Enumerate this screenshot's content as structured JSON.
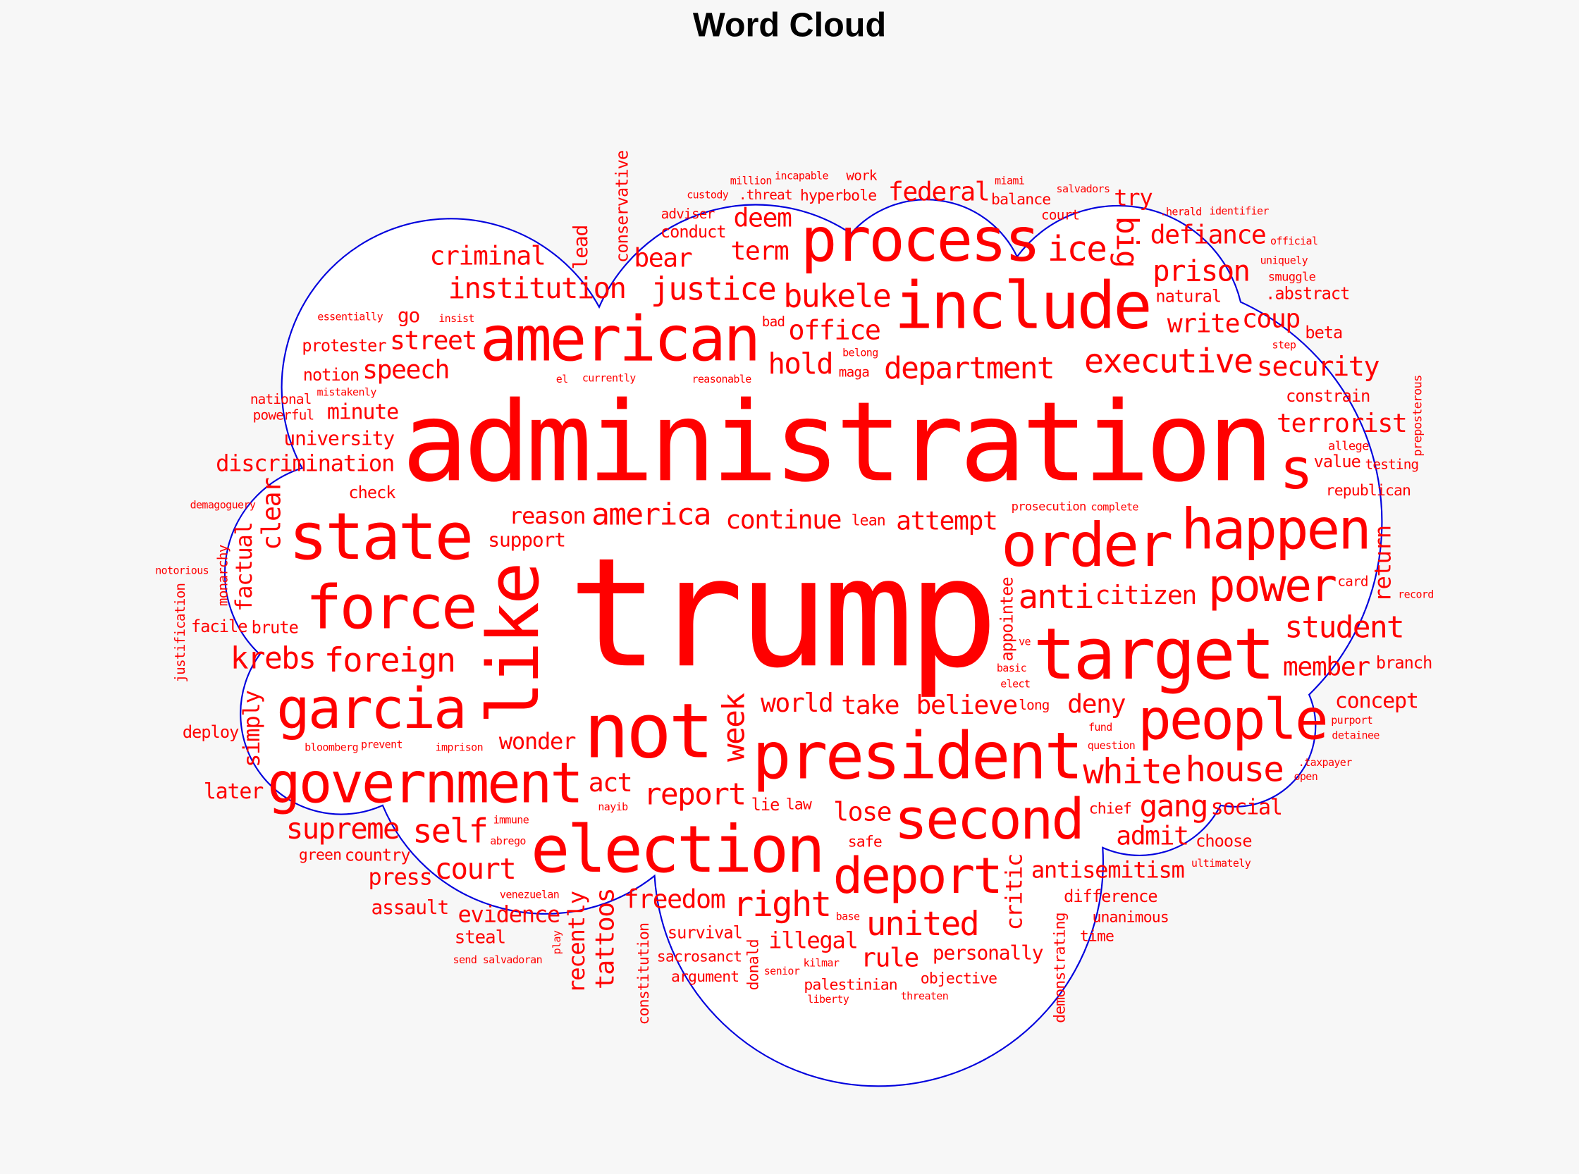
{
  "chart_data": {
    "type": "wordcloud",
    "title": "Word Cloud",
    "word_color": "#ff0000",
    "outline_color": "#0000dd",
    "shape": "cloud",
    "words": [
      {
        "text": "trump",
        "weight": 1.0
      },
      {
        "text": "administration",
        "weight": 0.73
      },
      {
        "text": "not",
        "weight": 0.5
      },
      {
        "text": "like",
        "weight": 0.47
      },
      {
        "text": "target",
        "weight": 0.47
      },
      {
        "text": "include",
        "weight": 0.43
      },
      {
        "text": "state",
        "weight": 0.43
      },
      {
        "text": "election",
        "weight": 0.43
      },
      {
        "text": "president",
        "weight": 0.43
      },
      {
        "text": "american",
        "weight": 0.41
      },
      {
        "text": "process",
        "weight": 0.4
      },
      {
        "text": "order",
        "weight": 0.4
      },
      {
        "text": "force",
        "weight": 0.4
      },
      {
        "text": "happen",
        "weight": 0.37
      },
      {
        "text": "s",
        "weight": 0.37
      },
      {
        "text": "people",
        "weight": 0.37
      },
      {
        "text": "garcia",
        "weight": 0.37
      },
      {
        "text": "government",
        "weight": 0.37
      },
      {
        "text": "second",
        "weight": 0.37
      },
      {
        "text": "deport",
        "weight": 0.33
      },
      {
        "text": "power",
        "weight": 0.3
      },
      {
        "text": "white",
        "weight": 0.23
      },
      {
        "text": "house",
        "weight": 0.23
      },
      {
        "text": "ice",
        "weight": 0.23
      },
      {
        "text": "right",
        "weight": 0.23
      },
      {
        "text": "executive",
        "weight": 0.22
      },
      {
        "text": "anti",
        "weight": 0.22
      },
      {
        "text": "foreign",
        "weight": 0.22
      },
      {
        "text": "self",
        "weight": 0.22
      },
      {
        "text": "united",
        "weight": 0.22
      },
      {
        "text": "justice",
        "weight": 0.21
      },
      {
        "text": "bukele",
        "weight": 0.21
      },
      {
        "text": "big",
        "weight": 0.2
      },
      {
        "text": "department",
        "weight": 0.2
      },
      {
        "text": "america",
        "weight": 0.2
      },
      {
        "text": "student",
        "weight": 0.2
      },
      {
        "text": "krebs",
        "weight": 0.2
      },
      {
        "text": "week",
        "weight": 0.2
      },
      {
        "text": "gang",
        "weight": 0.2
      },
      {
        "text": "report",
        "weight": 0.2
      },
      {
        "text": "institution",
        "weight": 0.19
      },
      {
        "text": "hold",
        "weight": 0.19
      },
      {
        "text": "supreme",
        "weight": 0.19
      },
      {
        "text": "court",
        "weight": 0.19
      },
      {
        "text": "prison",
        "weight": 0.19
      },
      {
        "text": "office",
        "weight": 0.18
      },
      {
        "text": "security",
        "weight": 0.18
      },
      {
        "text": "criminal",
        "weight": 0.17
      },
      {
        "text": "term",
        "weight": 0.17
      },
      {
        "text": "federal",
        "weight": 0.17
      },
      {
        "text": "deem",
        "weight": 0.17
      },
      {
        "text": "write",
        "weight": 0.17
      },
      {
        "text": "defiance",
        "weight": 0.17
      },
      {
        "text": "speech",
        "weight": 0.17
      },
      {
        "text": "coup",
        "weight": 0.17
      },
      {
        "text": "bear",
        "weight": 0.17
      },
      {
        "text": "street",
        "weight": 0.17
      },
      {
        "text": "continue",
        "weight": 0.17
      },
      {
        "text": "attempt",
        "weight": 0.17
      },
      {
        "text": "citizen",
        "weight": 0.17
      },
      {
        "text": "terrorist",
        "weight": 0.17
      },
      {
        "text": "take",
        "weight": 0.17
      },
      {
        "text": "believe",
        "weight": 0.17
      },
      {
        "text": "deny",
        "weight": 0.17
      },
      {
        "text": "member",
        "weight": 0.17
      },
      {
        "text": "world",
        "weight": 0.17
      },
      {
        "text": "lose",
        "weight": 0.17
      },
      {
        "text": "act",
        "weight": 0.17
      },
      {
        "text": "freedom",
        "weight": 0.17
      },
      {
        "text": "admit",
        "weight": 0.17
      },
      {
        "text": "rule",
        "weight": 0.17
      },
      {
        "text": "clear",
        "weight": 0.17
      },
      {
        "text": "tattoos",
        "weight": 0.17
      },
      {
        "text": "wonder",
        "weight": 0.15
      },
      {
        "text": "try",
        "weight": 0.15
      },
      {
        "text": "discrimination",
        "weight": 0.15
      },
      {
        "text": "reason",
        "weight": 0.15
      },
      {
        "text": "factual",
        "weight": 0.15
      },
      {
        "text": "recently",
        "weight": 0.15
      },
      {
        "text": "critic",
        "weight": 0.15
      },
      {
        "text": "simply",
        "weight": 0.15
      },
      {
        "text": "return",
        "weight": 0.15
      },
      {
        "text": "evidence",
        "weight": 0.15
      },
      {
        "text": "illegal",
        "weight": 0.15
      },
      {
        "text": "antisemitism",
        "weight": 0.15
      },
      {
        "text": "press",
        "weight": 0.15
      },
      {
        "text": "minute",
        "weight": 0.14
      },
      {
        "text": "concept",
        "weight": 0.14
      },
      {
        "text": "social",
        "weight": 0.14
      },
      {
        "text": "later",
        "weight": 0.14
      },
      {
        "text": "go",
        "weight": 0.13
      },
      {
        "text": "assault",
        "weight": 0.13
      },
      {
        "text": "lead",
        "weight": 0.13
      },
      {
        "text": "personally",
        "weight": 0.13
      },
      {
        "text": "university",
        "weight": 0.13
      },
      {
        "text": "support",
        "weight": 0.13
      },
      {
        "text": "steal",
        "weight": 0.12
      },
      {
        "text": "protester",
        "weight": 0.11
      },
      {
        "text": "constrain",
        "weight": 0.11
      },
      {
        "text": "conduct",
        "weight": 0.11
      },
      {
        "text": ".abstract",
        "weight": 0.11
      },
      {
        "text": "beta",
        "weight": 0.11
      },
      {
        "text": "natural",
        "weight": 0.11
      },
      {
        "text": "check",
        "weight": 0.11
      },
      {
        "text": "value",
        "weight": 0.11
      },
      {
        "text": "notion",
        "weight": 0.11
      },
      {
        "text": "brute",
        "weight": 0.11
      },
      {
        "text": "facile",
        "weight": 0.11
      },
      {
        "text": "choose",
        "weight": 0.11
      },
      {
        "text": "branch",
        "weight": 0.11
      },
      {
        "text": "lie",
        "weight": 0.11
      },
      {
        "text": "country",
        "weight": 0.11
      },
      {
        "text": "deploy",
        "weight": 0.11
      },
      {
        "text": "survival",
        "weight": 0.11
      },
      {
        "text": "difference",
        "weight": 0.11
      },
      {
        "text": "conservative",
        "weight": 0.11
      },
      {
        "text": "appointee",
        "weight": 0.11
      },
      {
        "text": "constitution",
        "weight": 0.1
      },
      {
        "text": "demonstrating",
        "weight": 0.1
      },
      {
        "text": "donald",
        "weight": 0.1
      },
      {
        "text": "hyperbole",
        "weight": 0.1
      },
      {
        "text": "republican",
        "weight": 0.1
      },
      {
        "text": "balance",
        "weight": 0.1
      },
      {
        "text": "lean",
        "weight": 0.1
      },
      {
        "text": "law",
        "weight": 0.1
      },
      {
        "text": "safe",
        "weight": 0.1
      },
      {
        "text": "unanimous",
        "weight": 0.1
      },
      {
        "text": "green",
        "weight": 0.1
      },
      {
        "text": "palestinian",
        "weight": 0.1
      },
      {
        "text": "sacrosanct",
        "weight": 0.1
      },
      {
        "text": "objective",
        "weight": 0.1
      },
      {
        "text": "chief",
        "weight": 0.1
      },
      {
        "text": "argument",
        "weight": 0.1
      },
      {
        "text": "time",
        "weight": 0.1
      },
      {
        "text": "adviser",
        "weight": 0.09
      },
      {
        "text": ".threat",
        "weight": 0.09
      },
      {
        "text": "maga",
        "weight": 0.09
      },
      {
        "text": "bad",
        "weight": 0.09
      },
      {
        "text": "powerful",
        "weight": 0.09
      },
      {
        "text": "national",
        "weight": 0.09
      },
      {
        "text": "long",
        "weight": 0.09
      },
      {
        "text": "justification",
        "weight": 0.09
      },
      {
        "text": "monarchy",
        "weight": 0.09
      },
      {
        "text": "work",
        "weight": 0.09
      },
      {
        "text": "testing",
        "weight": 0.09
      },
      {
        "text": "card",
        "weight": 0.09
      },
      {
        "text": "court",
        "weight": 0.09
      },
      {
        "text": "prosecution",
        "weight": 0.08
      },
      {
        "text": "smuggle",
        "weight": 0.08
      },
      {
        "text": "allege",
        "weight": 0.08
      },
      {
        "text": "preposterous",
        "weight": 0.08
      },
      {
        "text": "miami",
        "weight": 0.07
      },
      {
        "text": "incapable",
        "weight": 0.07
      },
      {
        "text": "salvadors",
        "weight": 0.07
      },
      {
        "text": ".herald",
        "weight": 0.07
      },
      {
        "text": "identifier",
        "weight": 0.07
      },
      {
        "text": "uniquely",
        "weight": 0.07
      },
      {
        "text": "official",
        "weight": 0.07
      },
      {
        "text": "reasonable",
        "weight": 0.07
      },
      {
        "text": "currently",
        "weight": 0.07
      },
      {
        "text": "insist",
        "weight": 0.07
      },
      {
        "text": "mistakenly",
        "weight": 0.07
      },
      {
        "text": "custody",
        "weight": 0.07
      },
      {
        "text": "belong",
        "weight": 0.07
      },
      {
        "text": "complete",
        "weight": 0.07
      },
      {
        "text": "step",
        "weight": 0.07
      },
      {
        "text": "el",
        "weight": 0.07
      },
      {
        "text": "million",
        "weight": 0.07
      },
      {
        "text": "basic",
        "weight": 0.07
      },
      {
        "text": "demagoguery",
        "weight": 0.07
      },
      {
        "text": "essentially",
        "weight": 0.07
      },
      {
        "text": ".taxpayer",
        "weight": 0.07
      },
      {
        "text": "fund",
        "weight": 0.07
      },
      {
        "text": "nayib",
        "weight": 0.07
      },
      {
        "text": "notorious",
        "weight": 0.07
      },
      {
        "text": "question",
        "weight": 0.07
      },
      {
        "text": "purport",
        "weight": 0.07
      },
      {
        "text": "record",
        "weight": 0.07
      },
      {
        "text": "imprison",
        "weight": 0.07
      },
      {
        "text": "ve",
        "weight": 0.07
      },
      {
        "text": "prevent",
        "weight": 0.07
      },
      {
        "text": "bloomberg",
        "weight": 0.07
      },
      {
        "text": "immune",
        "weight": 0.07
      },
      {
        "text": "detainee",
        "weight": 0.07
      },
      {
        "text": "send salvadoran",
        "weight": 0.07
      },
      {
        "text": "elect",
        "weight": 0.07
      },
      {
        "text": "open",
        "weight": 0.07
      },
      {
        "text": "kilmar",
        "weight": 0.07
      },
      {
        "text": "venezuelan",
        "weight": 0.07
      },
      {
        "text": "threaten",
        "weight": 0.07
      },
      {
        "text": "ultimately",
        "weight": 0.07
      },
      {
        "text": "abrego",
        "weight": 0.07
      },
      {
        "text": "senior",
        "weight": 0.07
      },
      {
        "text": "play",
        "weight": 0.07
      },
      {
        "text": "base",
        "weight": 0.07
      },
      {
        "text": "liberty",
        "weight": 0.07
      }
    ]
  }
}
